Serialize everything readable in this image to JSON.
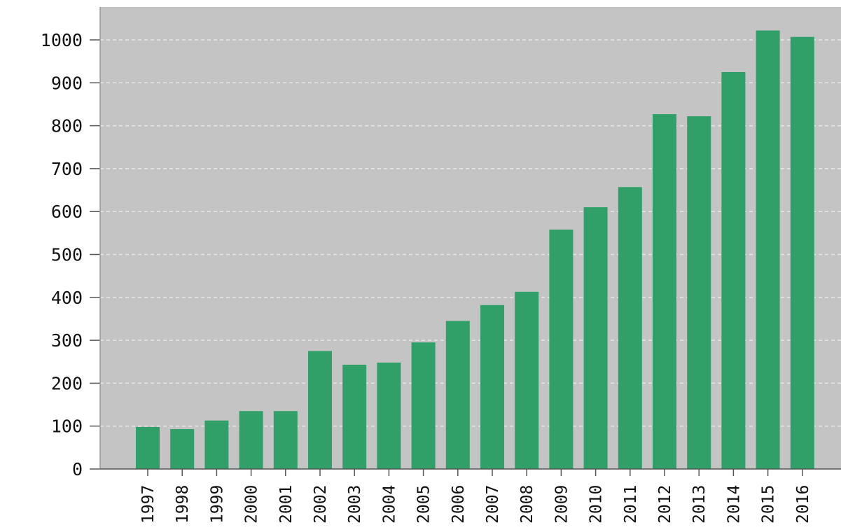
{
  "chart_data": {
    "type": "bar",
    "title": "",
    "xlabel": "",
    "ylabel": "",
    "categories": [
      "1997",
      "1998",
      "1999",
      "2000",
      "2001",
      "2002",
      "2003",
      "2004",
      "2005",
      "2006",
      "2007",
      "2008",
      "2009",
      "2010",
      "2011",
      "2012",
      "2013",
      "2014",
      "2015",
      "2016"
    ],
    "values": [
      98,
      93,
      113,
      135,
      135,
      275,
      243,
      248,
      295,
      345,
      382,
      413,
      558,
      610,
      657,
      827,
      822,
      925,
      1022,
      1007
    ],
    "ylim": [
      0,
      1000
    ],
    "yticks": [
      0,
      100,
      200,
      300,
      400,
      500,
      600,
      700,
      800,
      900,
      1000
    ],
    "grid": true,
    "colors": {
      "bar": "#30a068",
      "plot_background": "#c4c4c4",
      "gridline": "#e6e6e6",
      "page_background": "#ffffff"
    }
  }
}
